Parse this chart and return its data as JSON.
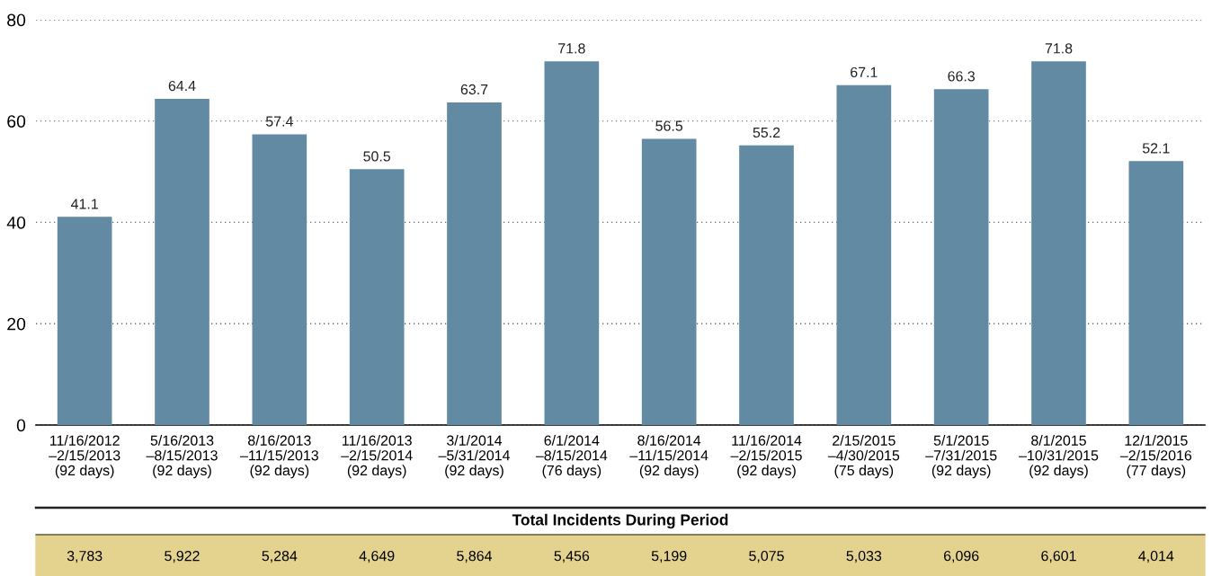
{
  "chart_data": {
    "type": "bar",
    "categories": [
      "11/16/2012\n–2/15/2013\n(92 days)",
      "5/16/2013\n–8/15/2013\n(92 days)",
      "8/16/2013\n–11/15/2013\n(92 days)",
      "11/16/2013\n–2/15/2014\n(92 days)",
      "3/1/2014\n–5/31/2014\n(92 days)",
      "6/1/2014\n–8/15/2014\n(76 days)",
      "8/16/2014\n–11/15/2014\n(92 days)",
      "11/16/2014\n–2/15/2015\n(92 days)",
      "2/15/2015\n–4/30/2015\n(75 days)",
      "5/1/2015\n–7/31/2015\n(92 days)",
      "8/1/2015\n–10/31/2015\n(92 days)",
      "12/1/2015\n–2/15/2016\n(77 days)"
    ],
    "values": [
      41.1,
      64.4,
      57.4,
      50.5,
      63.7,
      71.8,
      56.5,
      55.2,
      67.1,
      66.3,
      71.8,
      52.1
    ],
    "color": "#628aa3",
    "data_labels": true,
    "ylim": [
      0,
      80
    ],
    "yticks": [
      0,
      20,
      40,
      60,
      80
    ],
    "grid": "y",
    "annotations": [
      "Total Incidents During Period",
      "3,783",
      "5,922",
      "5,284",
      "4,649",
      "5,864",
      "5,456",
      "5,199",
      "5,075",
      "5,033",
      "6,096",
      "6,601",
      "4,014"
    ]
  }
}
